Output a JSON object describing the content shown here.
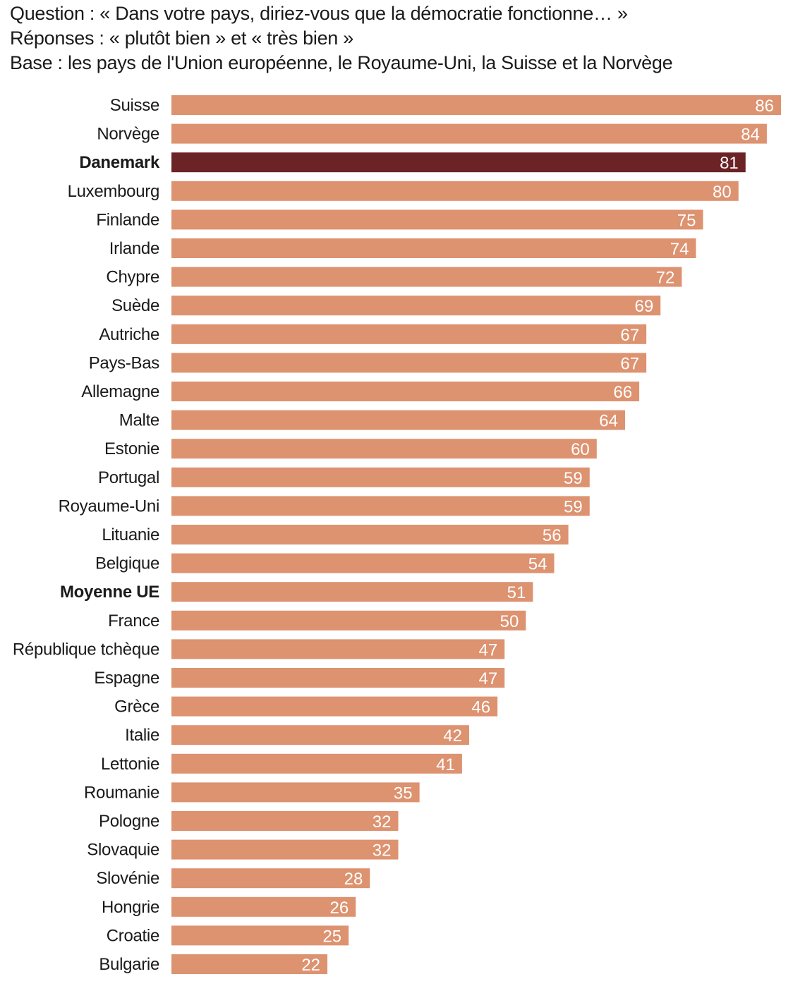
{
  "header": {
    "question": "Question : « Dans votre pays, diriez-vous que la démocratie fonctionne… »",
    "answers": "Réponses : « plutôt bien » et « très bien »",
    "base": "Base : les pays de l'Union européenne, le Royaume-Uni, la Suisse et la Norvège"
  },
  "colors": {
    "bar": "#dd9270",
    "highlight": "#6b2326",
    "value_text": "#ffffff"
  },
  "chart_data": {
    "type": "bar",
    "orientation": "horizontal",
    "title": "Question : « Dans votre pays, diriez-vous que la démocratie fonctionne… »",
    "subtitle": "Réponses : « plutôt bien » et « très bien » — Base : les pays de l'Union européenne, le Royaume-Uni, la Suisse et la Norvège",
    "xlabel": "",
    "ylabel": "",
    "xlim": [
      0,
      86
    ],
    "grid": false,
    "categories": [
      "Suisse",
      "Norvège",
      "Danemark",
      "Luxembourg",
      "Finlande",
      "Irlande",
      "Chypre",
      "Suède",
      "Autriche",
      "Pays-Bas",
      "Allemagne",
      "Malte",
      "Estonie",
      "Portugal",
      "Royaume-Uni",
      "Lituanie",
      "Belgique",
      "Moyenne UE",
      "France",
      "République tchèque",
      "Espagne",
      "Grèce",
      "Italie",
      "Lettonie",
      "Roumanie",
      "Pologne",
      "Slovaquie",
      "Slovénie",
      "Hongrie",
      "Croatie",
      "Bulgarie"
    ],
    "values": [
      86,
      84,
      81,
      80,
      75,
      74,
      72,
      69,
      67,
      67,
      66,
      64,
      60,
      59,
      59,
      56,
      54,
      51,
      50,
      47,
      47,
      46,
      42,
      41,
      35,
      32,
      32,
      28,
      26,
      25,
      22
    ],
    "highlighted": [
      "Danemark"
    ],
    "bold_labels": [
      "Danemark",
      "Moyenne UE"
    ]
  }
}
